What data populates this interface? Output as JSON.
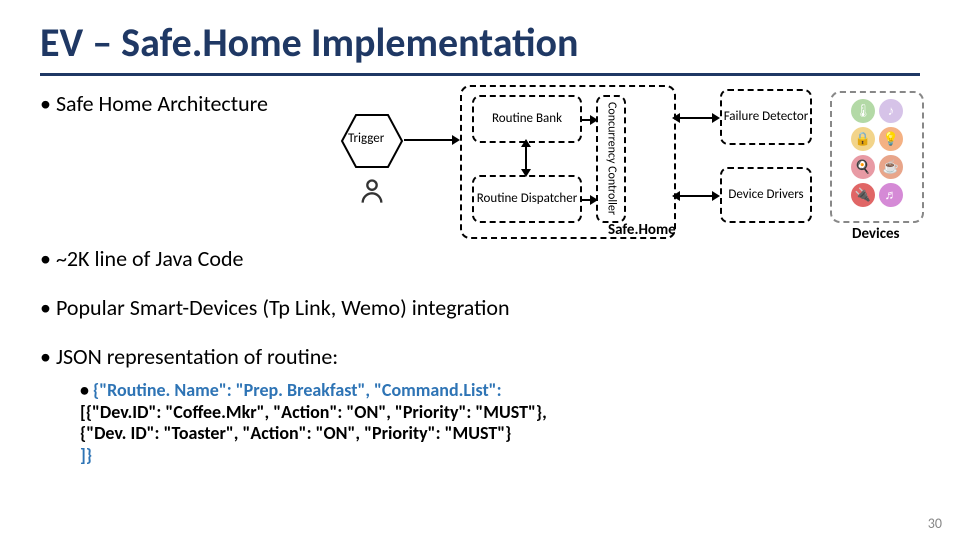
{
  "title": "EV – Safe.Home Implementation",
  "bullets": {
    "b1": "Safe Home Architecture",
    "b2": "~2K line of Java Code",
    "b3": "Popular Smart-Devices (Tp Link, Wemo) integration",
    "b4": "JSON representation of routine:"
  },
  "json_example": {
    "line1": "{\"Routine. Name\": \"Prep. Breakfast\", \"Command.List\":",
    "line2": "[{\"Dev.ID\": \"Coffee.Mkr\", \"Action\": \"ON\", \"Priority\": \"MUST\"},",
    "line3": "{\"Dev. ID\": \"Toaster\", \"Action\": \"ON\", \"Priority\": \"MUST\"}",
    "line4": "]}"
  },
  "diagram": {
    "trigger": "Trigger",
    "routine_bank": "Routine Bank",
    "routine_dispatcher": "Routine Dispatcher",
    "concurrency_controller": "Concurrency Controller",
    "safehome": "Safe.Home",
    "failure_detector": "Failure Detector",
    "device_drivers": "Device Drivers",
    "devices_label": "Devices",
    "device_icons": [
      {
        "glyph": "🌡",
        "color": "#b3d9a6"
      },
      {
        "glyph": "♪",
        "color": "#d6c3e8"
      },
      {
        "glyph": "🔒",
        "color": "#f2d48a"
      },
      {
        "glyph": "💡",
        "color": "#f4b183"
      },
      {
        "glyph": "🍳",
        "color": "#e89aa4"
      },
      {
        "glyph": "☕",
        "color": "#e8a58a"
      },
      {
        "glyph": "🔌",
        "color": "#e06666"
      },
      {
        "glyph": "♬",
        "color": "#d58ad6"
      }
    ]
  },
  "page_number": "30",
  "style": {
    "title_color": "#1f3864",
    "rule_color": "#1f3864",
    "dash_color": "#000000",
    "background": "#ffffff"
  }
}
